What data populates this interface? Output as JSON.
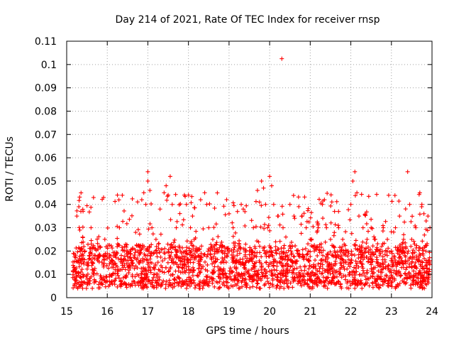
{
  "chart_data": {
    "type": "scatter",
    "title": "Day 214 of 2021, Rate Of TEC Index for receiver rnsp",
    "xlabel": "GPS time / hours",
    "ylabel": "ROTI / TECUs",
    "xlim": [
      15,
      24
    ],
    "ylim": [
      0,
      0.11
    ],
    "xticks": [
      "15",
      "16",
      "17",
      "18",
      "19",
      "20",
      "21",
      "22",
      "23",
      "24"
    ],
    "yticks": [
      "0",
      "0.01",
      "0.02",
      "0.03",
      "0.04",
      "0.05",
      "0.06",
      "0.07",
      "0.08",
      "0.09",
      "0.1",
      "0.11"
    ],
    "grid": true,
    "marker": "plus",
    "color": "#ff0000",
    "series": [
      {
        "name": "ROTI",
        "x": [
          15.2,
          15.25,
          15.3,
          15.3,
          15.35,
          15.35,
          15.4,
          15.45,
          15.5,
          15.6,
          15.65,
          15.7,
          15.8,
          15.9,
          16.0,
          16.1,
          16.2,
          16.25,
          16.3,
          16.4,
          16.5,
          16.6,
          16.7,
          16.8,
          16.85,
          16.9,
          16.95,
          17.0,
          17.0,
          17.05,
          17.1,
          17.2,
          17.3,
          17.4,
          17.45,
          17.5,
          17.55,
          17.6,
          17.7,
          17.8,
          17.9,
          17.95,
          18.0,
          18.05,
          18.1,
          18.2,
          18.3,
          18.4,
          18.45,
          18.5,
          18.6,
          18.7,
          18.8,
          18.9,
          19.0,
          19.1,
          19.2,
          19.3,
          19.35,
          19.4,
          19.5,
          19.6,
          19.7,
          19.75,
          19.8,
          19.85,
          19.9,
          19.95,
          20.0,
          20.05,
          20.1,
          20.2,
          20.3,
          20.33,
          20.4,
          20.5,
          20.6,
          20.7,
          20.8,
          20.9,
          21.0,
          21.1,
          21.2,
          21.3,
          21.35,
          21.4,
          21.5,
          21.6,
          21.7,
          21.8,
          21.9,
          22.0,
          22.05,
          22.1,
          22.15,
          22.2,
          22.3,
          22.4,
          22.5,
          22.6,
          22.7,
          22.8,
          22.9,
          23.0,
          23.1,
          23.2,
          23.3,
          23.4,
          23.45,
          23.5,
          23.6,
          23.7,
          23.75,
          23.8,
          23.9,
          23.95
        ],
        "y": [
          0.012,
          0.035,
          0.039,
          0.015,
          0.037,
          0.011,
          0.01,
          0.02,
          0.015,
          0.03,
          0.012,
          0.018,
          0.022,
          0.014,
          0.019,
          0.016,
          0.018,
          0.044,
          0.03,
          0.013,
          0.02,
          0.015,
          0.028,
          0.019,
          0.042,
          0.045,
          0.04,
          0.054,
          0.05,
          0.046,
          0.03,
          0.025,
          0.038,
          0.045,
          0.048,
          0.044,
          0.052,
          0.04,
          0.03,
          0.02,
          0.044,
          0.04,
          0.044,
          0.03,
          0.035,
          0.02,
          0.042,
          0.045,
          0.04,
          0.03,
          0.025,
          0.02,
          0.015,
          0.02,
          0.036,
          0.03,
          0.02,
          0.04,
          0.038,
          0.015,
          0.02,
          0.03,
          0.046,
          0.041,
          0.05,
          0.047,
          0.04,
          0.03,
          0.052,
          0.048,
          0.04,
          0.035,
          0.1025,
          0.03,
          0.026,
          0.04,
          0.035,
          0.02,
          0.035,
          0.03,
          0.025,
          0.02,
          0.03,
          0.04,
          0.042,
          0.03,
          0.025,
          0.02,
          0.03,
          0.025,
          0.02,
          0.04,
          0.05,
          0.054,
          0.045,
          0.035,
          0.03,
          0.025,
          0.03,
          0.025,
          0.02,
          0.03,
          0.025,
          0.02,
          0.03,
          0.035,
          0.025,
          0.054,
          0.04,
          0.025,
          0.03,
          0.045,
          0.04,
          0.036,
          0.035,
          0.03
        ]
      }
    ],
    "dense_band": {
      "x_range": [
        15.15,
        23.95
      ],
      "typical_min": 0.005,
      "typical_max": 0.03,
      "center": 0.014
    }
  }
}
